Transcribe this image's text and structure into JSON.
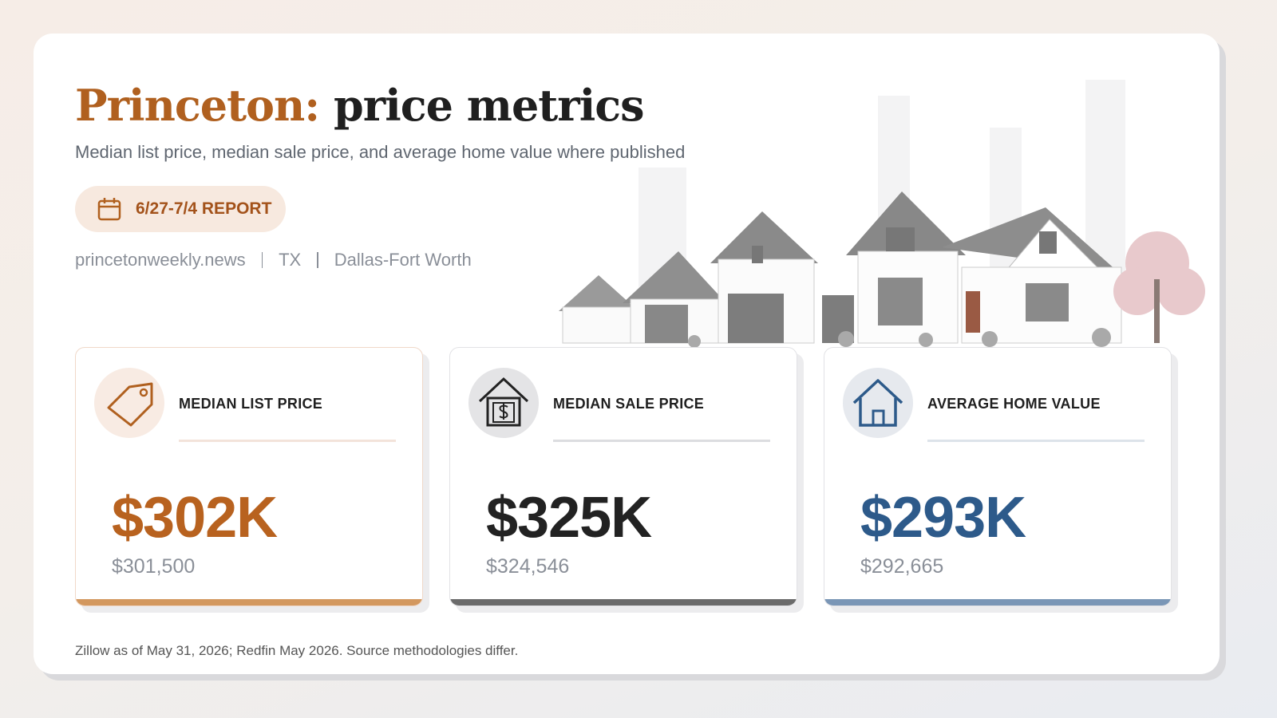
{
  "header": {
    "title_place": "Princeton:",
    "title_rest": "price metrics",
    "subtitle": "Median list price, median sale price, and average home value where published",
    "badge": "6/27-7/4 REPORT",
    "meta": [
      "princetonweekly.news",
      "TX",
      "Dallas-Fort Worth"
    ]
  },
  "cards": [
    {
      "label": "MEDIAN LIST PRICE",
      "value": "$302K",
      "exact": "$301,500"
    },
    {
      "label": "MEDIAN SALE PRICE",
      "value": "$325K",
      "exact": "$324,546"
    },
    {
      "label": "AVERAGE HOME VALUE",
      "value": "$293K",
      "exact": "$292,665"
    }
  ],
  "footer": {
    "note": "Zillow as of May 31, 2026; Redfin May 2026. Source methodologies differ."
  }
}
